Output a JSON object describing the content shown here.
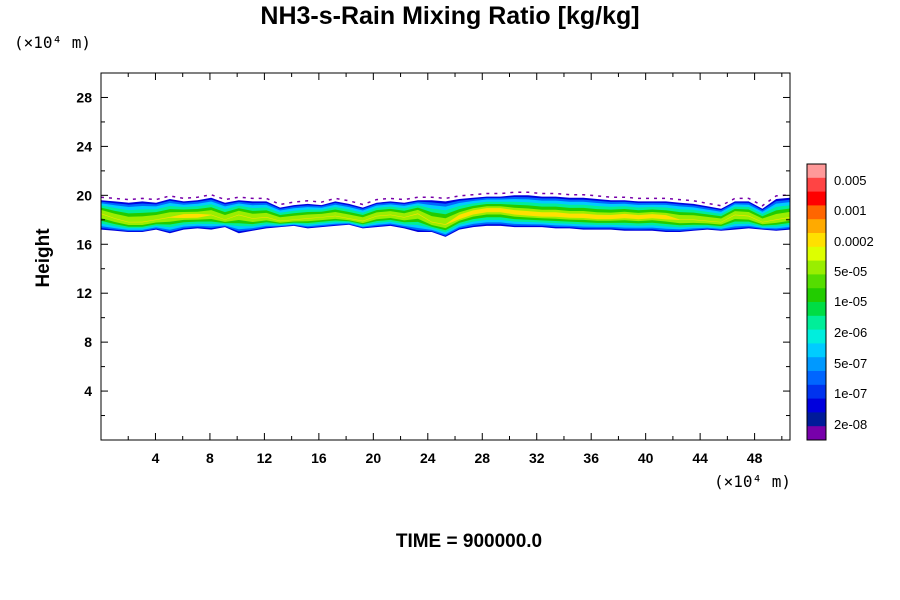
{
  "title": "NH3-s-Rain Mixing Ratio [kg/kg]",
  "time_label": "TIME = 900000.0",
  "chart_data": {
    "type": "heatmap",
    "title": "NH3-s-Rain Mixing Ratio [kg/kg]",
    "ylabel": "Height",
    "xlabel": "",
    "x_scale_label": "(×10⁴ m)",
    "y_scale_label": "(×10⁴ m)",
    "xlim": [
      0,
      50.6
    ],
    "ylim": [
      0,
      30
    ],
    "x_ticks": [
      4,
      8,
      12,
      16,
      20,
      24,
      28,
      32,
      36,
      40,
      44,
      48
    ],
    "y_ticks": [
      4,
      8,
      12,
      16,
      20,
      24,
      28
    ],
    "colorbar": {
      "labels": [
        "0.005",
        "0.001",
        "0.0002",
        "5e-05",
        "1e-05",
        "2e-06",
        "5e-07",
        "1e-07",
        "2e-08"
      ],
      "colors_top_to_bottom": [
        "#ff9999",
        "#ff4444",
        "#ff0000",
        "#ff6600",
        "#ffaa00",
        "#ffe000",
        "#ddff00",
        "#99ee00",
        "#55dd00",
        "#22cc00",
        "#00dd44",
        "#00ee99",
        "#00eedd",
        "#00ccff",
        "#0099ff",
        "#0066ff",
        "#0033ee",
        "#0000dd",
        "#001a99",
        "#7700aa"
      ]
    },
    "layer": {
      "description_values": "cloud layer between roughly 16.5 and 20 (×10⁴ m) height across full x range",
      "bottom": [
        17.2,
        17.1,
        17.0,
        17.0,
        17.2,
        16.9,
        17.2,
        17.3,
        17.2,
        17.4,
        16.9,
        17.1,
        17.3,
        17.4,
        17.5,
        17.3,
        17.4,
        17.5,
        17.6,
        17.3,
        17.4,
        17.5,
        17.3,
        17.0,
        17.0,
        16.6,
        17.2,
        17.4,
        17.5,
        17.5,
        17.4,
        17.4,
        17.4,
        17.3,
        17.3,
        17.2,
        17.2,
        17.2,
        17.1,
        17.1,
        17.1,
        17.0,
        17.0,
        17.1,
        17.2,
        17.1,
        17.2,
        17.3,
        17.2,
        17.1,
        17.2
      ],
      "top": [
        19.6,
        19.5,
        19.4,
        19.5,
        19.4,
        19.7,
        19.5,
        19.6,
        19.8,
        19.4,
        19.6,
        19.5,
        19.5,
        19.0,
        19.2,
        19.3,
        19.2,
        19.5,
        19.3,
        19.0,
        19.4,
        19.5,
        19.4,
        19.6,
        19.6,
        19.5,
        19.7,
        19.8,
        19.9,
        19.9,
        20.0,
        20.0,
        19.9,
        19.9,
        19.8,
        19.8,
        19.7,
        19.6,
        19.6,
        19.5,
        19.5,
        19.5,
        19.4,
        19.3,
        19.1,
        18.9,
        19.5,
        19.5,
        18.9,
        19.7,
        19.8
      ],
      "core": [
        18.5,
        18.1,
        17.8,
        17.8,
        18.0,
        18.2,
        18.3,
        18.3,
        18.4,
        18.0,
        18.4,
        18.1,
        18.2,
        17.9,
        18.0,
        18.1,
        18.2,
        18.3,
        18.1,
        17.9,
        18.3,
        18.4,
        18.2,
        18.5,
        17.8,
        17.6,
        18.2,
        18.6,
        18.8,
        18.8,
        18.6,
        18.5,
        18.4,
        18.4,
        18.3,
        18.3,
        18.2,
        18.2,
        18.3,
        18.2,
        18.3,
        18.2,
        18.0,
        18.0,
        17.9,
        17.8,
        18.4,
        18.3,
        17.8,
        18.0,
        18.2
      ]
    }
  }
}
